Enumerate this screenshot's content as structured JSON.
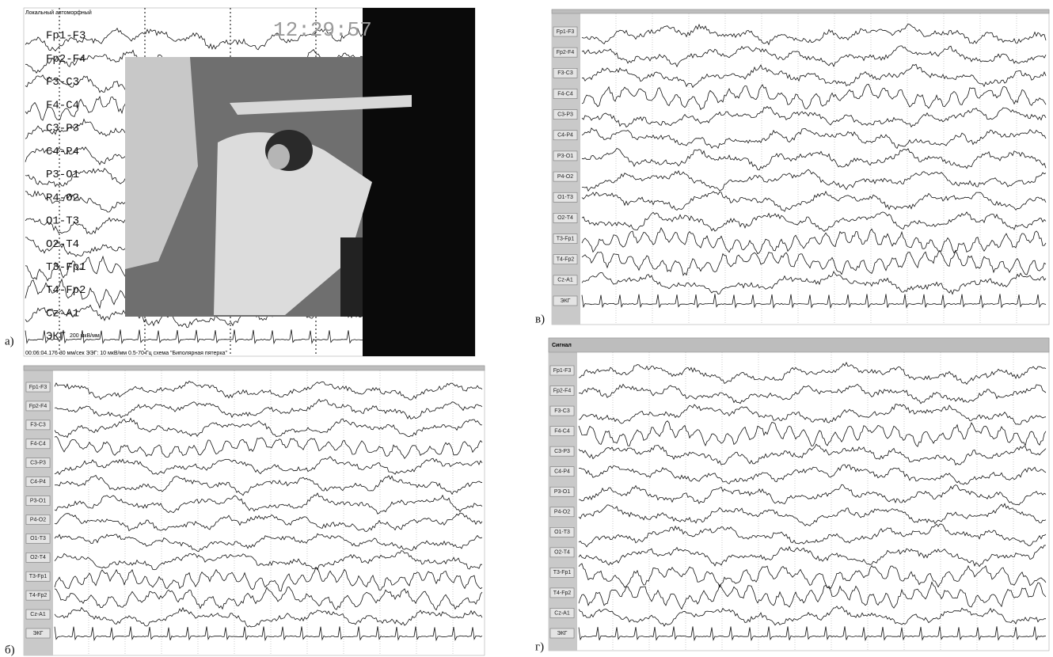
{
  "panels": [
    {
      "label": "а)",
      "header": "Локальный автоморфный",
      "timestamp": "12:29:57",
      "footer": "00:06:04.176   30 мм/сек   ЭЭГ: 10 мкВ/мм   0.5-70 Гц   схема \"Биполярная пятерка\"",
      "scale": "200 мкВ/мм",
      "channels": [
        "Fp1-F3",
        "Fp2-F4",
        "F3-C3",
        "F4-C4",
        "C3-P3",
        "C4-P4",
        "P3-O1",
        "P4-O2",
        "O1-T3",
        "O2-T4",
        "T3-Fp1",
        "T4-Fp2",
        "Cz-A1",
        "ЭКГ"
      ]
    },
    {
      "label": "б)",
      "channels": [
        "Fp1-F3",
        "Fp2-F4",
        "F3-C3",
        "F4-C4",
        "C3-P3",
        "C4-P4",
        "P3-O1",
        "P4-O2",
        "O1-T3",
        "O2-T4",
        "T3-Fp1",
        "T4-Fp2",
        "Cz-A1",
        "ЭКГ"
      ]
    },
    {
      "label": "в)",
      "channels": [
        "Fp1-F3",
        "Fp2-F4",
        "F3-C3",
        "F4-C4",
        "C3-P3",
        "C4-P4",
        "P3-O1",
        "P4-O2",
        "O1-T3",
        "O2-T4",
        "T3-Fp1",
        "T4-Fp2",
        "Cz-A1",
        "ЭКГ"
      ]
    },
    {
      "label": "г)",
      "header": "Сигнал",
      "channels": [
        "Fp1-F3",
        "Fp2-F4",
        "F3-C3",
        "F4-C4",
        "C3-P3",
        "C4-P4",
        "P3-O1",
        "P4-O2",
        "O1-T3",
        "O2-T4",
        "T3-Fp1",
        "T4-Fp2",
        "Cz-A1",
        "ЭКГ"
      ]
    }
  ]
}
